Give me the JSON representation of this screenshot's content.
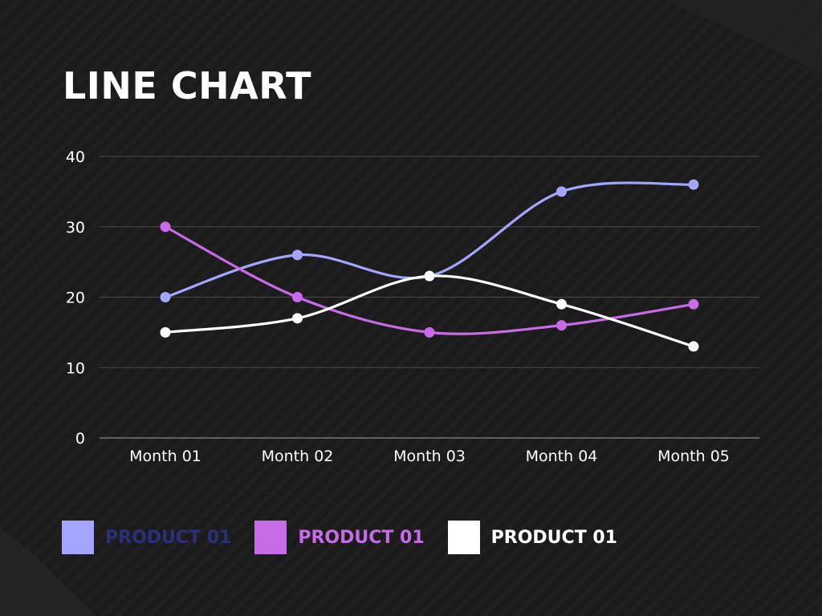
{
  "chart_data": {
    "type": "line",
    "title": "LINE CHART",
    "categories": [
      "Month 01",
      "Month 02",
      "Month 03",
      "Month 04",
      "Month 05"
    ],
    "yticks": [
      0,
      10,
      20,
      30,
      40
    ],
    "ylim": [
      0,
      40
    ],
    "grid": true,
    "legend_position": "bottom",
    "series": [
      {
        "name": "PRODUCT 01",
        "values": [
          20,
          26,
          23,
          35,
          36
        ],
        "color": "#a3a5ff",
        "label_color": "#2e2f7a"
      },
      {
        "name": "PRODUCT 01",
        "values": [
          30,
          20,
          15,
          16,
          19
        ],
        "color": "#c76be6",
        "label_color": "#c76be6"
      },
      {
        "name": "PRODUCT 01",
        "values": [
          15,
          17,
          23,
          19,
          13
        ],
        "color": "#ffffff",
        "label_color": "#ffffff"
      }
    ]
  }
}
